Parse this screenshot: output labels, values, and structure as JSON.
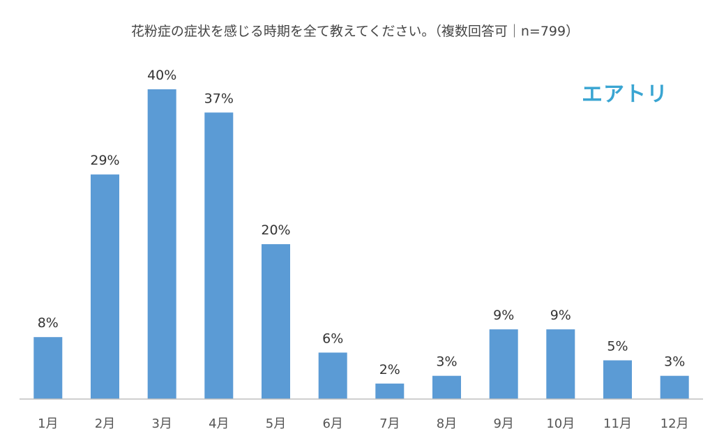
{
  "title": "花粉症の症状を感じる時期を全て教えてください。（複数回答可｜n=799）",
  "logo": {
    "text": "エアトリ",
    "color": "#3aa5d2"
  },
  "colors": {
    "bar": "#5b9bd5",
    "axis": "#bfbfbf",
    "label": "#333333"
  },
  "chart_data": {
    "type": "bar",
    "title": "花粉症の症状を感じる時期を全て教えてください。（複数回答可｜n=799）",
    "categories": [
      "1月",
      "2月",
      "3月",
      "4月",
      "5月",
      "6月",
      "7月",
      "8月",
      "9月",
      "10月",
      "11月",
      "12月"
    ],
    "values": [
      8,
      29,
      40,
      37,
      20,
      6,
      2,
      3,
      9,
      9,
      5,
      3
    ],
    "data_labels": [
      "8%",
      "29%",
      "40%",
      "37%",
      "20%",
      "6%",
      "2%",
      "3%",
      "9%",
      "9%",
      "5%",
      "3%"
    ],
    "unit": "%",
    "xlabel": "",
    "ylabel": "",
    "ylim": [
      0,
      40
    ],
    "grid": false,
    "legend": "none"
  }
}
